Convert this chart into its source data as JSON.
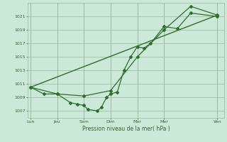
{
  "background_color": "#cce8d8",
  "grid_color": "#99bb99",
  "line_color": "#2d6e2d",
  "marker_color": "#2d6e2d",
  "xlabel": "Pression niveau de la mer( hPa )",
  "ylim": [
    1006.0,
    1023.0
  ],
  "yticks": [
    1007,
    1009,
    1011,
    1013,
    1015,
    1017,
    1019,
    1021
  ],
  "day_labels": [
    "Lun",
    "Jeu",
    "Sam",
    "Dim",
    "Mar",
    "Mer",
    "Ven"
  ],
  "day_positions": [
    0,
    2,
    4,
    6,
    8,
    10,
    14
  ],
  "xmin": -0.2,
  "xmax": 14.5,
  "series1_x": [
    0,
    1,
    2,
    3,
    3.5,
    4,
    4.3,
    5,
    5.3,
    5.7,
    6,
    6.5,
    7,
    7.5,
    8,
    8.5,
    9,
    10,
    11,
    12,
    14
  ],
  "series1_y": [
    1010.5,
    1009.5,
    1009.5,
    1008.2,
    1008.0,
    1007.8,
    1007.2,
    1007.0,
    1007.5,
    1009.0,
    1009.5,
    1009.8,
    1013.0,
    1015.0,
    1016.5,
    1016.3,
    1017.0,
    1019.5,
    1019.2,
    1021.5,
    1021.0
  ],
  "series2_x": [
    0,
    2,
    4,
    6,
    8,
    10,
    12,
    14
  ],
  "series2_y": [
    1010.5,
    1009.5,
    1009.2,
    1010.0,
    1015.0,
    1019.0,
    1022.5,
    1021.2
  ],
  "series3_x": [
    0,
    14
  ],
  "series3_y": [
    1010.5,
    1021.2
  ]
}
